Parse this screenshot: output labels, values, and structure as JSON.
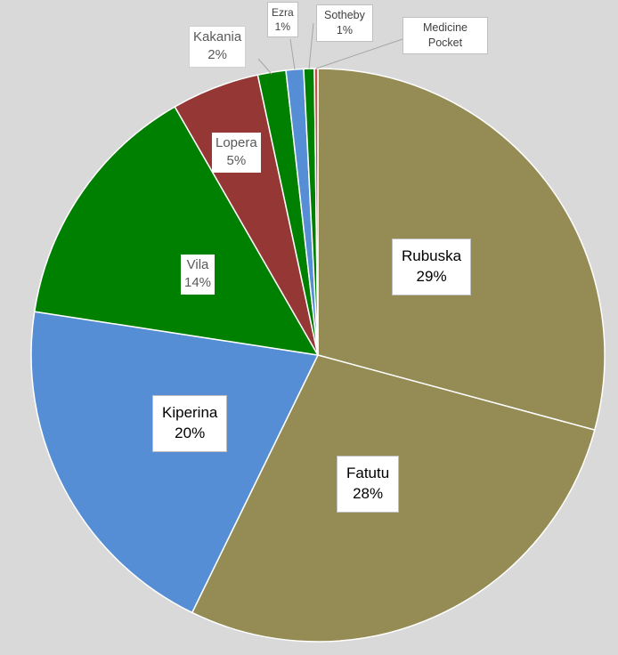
{
  "chart_data": {
    "type": "pie",
    "title": "",
    "legend": "none",
    "series": [
      {
        "name": "Rubuska",
        "percent_label": "29%",
        "value": 29.5,
        "color": "#958b54"
      },
      {
        "name": "Fatutu",
        "percent_label": "28%",
        "value": 28.3,
        "color": "#958b54"
      },
      {
        "name": "Kiperina",
        "percent_label": "20%",
        "value": 20.4,
        "color": "#558ed5"
      },
      {
        "name": "Vila",
        "percent_label": "14%",
        "value": 14.4,
        "color": "#008000"
      },
      {
        "name": "Lopera",
        "percent_label": "5%",
        "value": 5.0,
        "color": "#953735"
      },
      {
        "name": "Kakania",
        "percent_label": "2%",
        "value": 1.6,
        "color": "#008000"
      },
      {
        "name": "Ezra",
        "percent_label": "1%",
        "value": 1.0,
        "color": "#558ed5"
      },
      {
        "name": "Sotheby",
        "percent_label": "1%",
        "value": 0.6,
        "color": "#008000"
      },
      {
        "name": "Medicine Pocket",
        "percent_label": "",
        "value": 0.2,
        "color": "#c0504d"
      }
    ]
  }
}
